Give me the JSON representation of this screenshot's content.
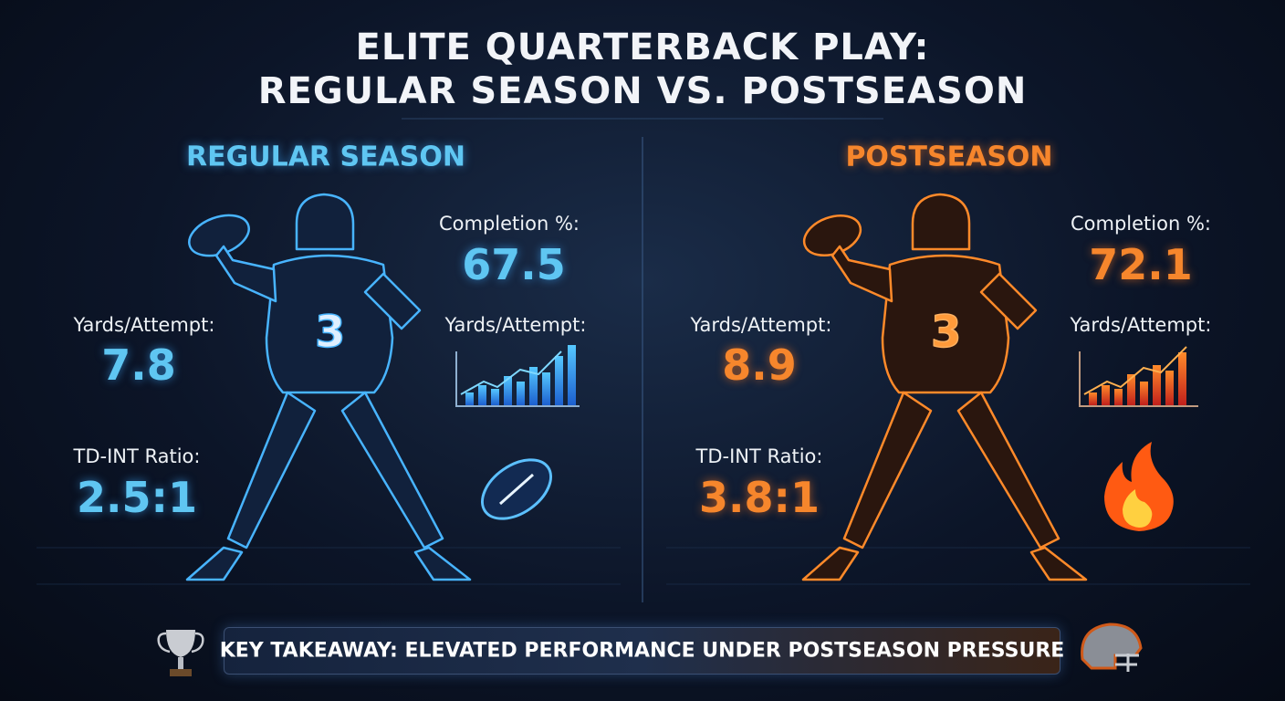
{
  "title": {
    "line1": "ELITE QUARTERBACK PLAY:",
    "line2": "REGULAR SEASON VS. POSTSEASON"
  },
  "regular": {
    "heading": "REGULAR SEASON",
    "completion": {
      "label": "Completion %:",
      "value": "67.5"
    },
    "yards": {
      "label": "Yards/Attempt:",
      "value": "7.8"
    },
    "yards_chart": {
      "label": "Yards/Attempt:"
    },
    "td_int": {
      "label": "TD-INT Ratio:",
      "value": "2.5:1"
    }
  },
  "post": {
    "heading": "POSTSEASON",
    "completion": {
      "label": "Completion %:",
      "value": "72.1"
    },
    "yards": {
      "label": "Yards/Attempt:",
      "value": "8.9"
    },
    "yards_chart": {
      "label": "Yards/Attempt:"
    },
    "td_int": {
      "label": "TD-INT Ratio:",
      "value": "3.8:1"
    }
  },
  "takeaway": "KEY TAKEAWAY: ELEVATED PERFORMANCE UNDER POSTSEASON PRESSURE"
}
